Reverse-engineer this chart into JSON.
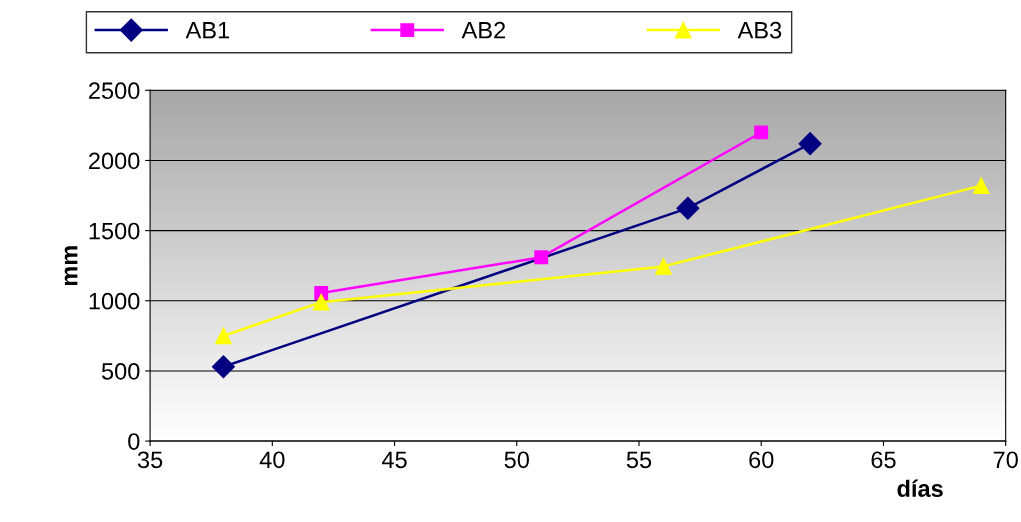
{
  "chart_data": {
    "type": "line",
    "xlabel": "días",
    "ylabel": "mm",
    "xlim": [
      35,
      70
    ],
    "xticks": [
      35,
      40,
      45,
      50,
      55,
      60,
      65,
      70
    ],
    "ylim": [
      0,
      2500
    ],
    "yticks": [
      0,
      500,
      1000,
      1500,
      2000,
      2500
    ],
    "grid": "y",
    "legend": "top",
    "series": [
      {
        "name": "AB1",
        "color": "#000080",
        "marker": "diamond",
        "x": [
          38,
          57,
          62
        ],
        "values": [
          530,
          1660,
          2120
        ]
      },
      {
        "name": "AB2",
        "color": "#ff00ff",
        "marker": "square",
        "x": [
          42,
          51,
          60
        ],
        "values": [
          1055,
          1310,
          2200
        ]
      },
      {
        "name": "AB3",
        "color": "#ffff00",
        "marker": "triangle",
        "x": [
          38,
          42,
          56,
          69
        ],
        "values": [
          750,
          990,
          1245,
          1820
        ]
      }
    ]
  }
}
